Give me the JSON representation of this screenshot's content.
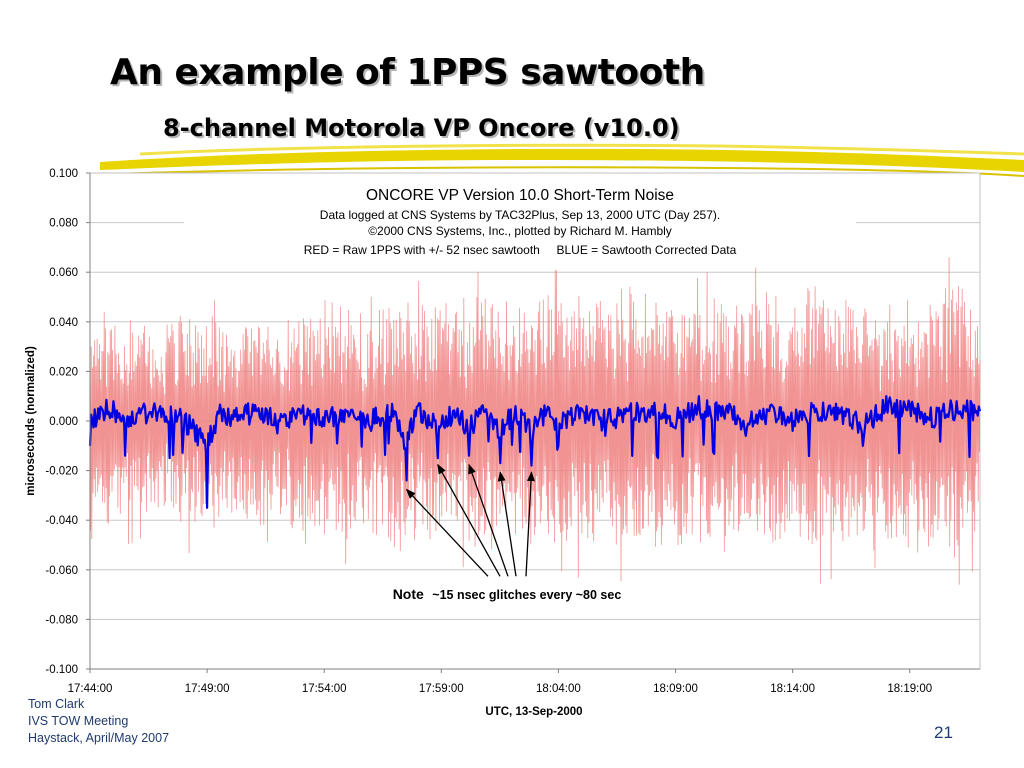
{
  "slide": {
    "title": "An example of 1PPS sawtooth",
    "subtitle": "8-channel Motorola  VP Oncore (v10.0)",
    "footer": [
      "Tom Clark",
      "IVS TOW Meeting",
      "Haystack, April/May 2007"
    ],
    "page_number": "21"
  },
  "colors": {
    "raw_series": "#f08080",
    "corrected_series": "#0000e0",
    "title_shadow": "#b5b5b5",
    "brush": "#e8d400",
    "footer_text": "#1e3a6e"
  },
  "chart_data": {
    "type": "line",
    "title": "ONCORE VP Version 10.0 Short-Term Noise",
    "subtitle_lines": [
      "Data logged at CNS Systems by TAC32Plus, Sep 13, 2000 UTC (Day 257).",
      "©2000 CNS Systems, Inc., plotted by Richard M. Hambly",
      "RED = Raw 1PPS with +/- 52 nsec sawtooth     BLUE = Sawtooth Corrected Data"
    ],
    "xlabel": "UTC, 13-Sep-2000",
    "ylabel": "microseconds (normalized)",
    "xlim": [
      "17:44:00",
      "18:22:00"
    ],
    "ylim": [
      -0.1,
      0.1
    ],
    "x_ticks": [
      "17:44:00",
      "17:49:00",
      "17:54:00",
      "17:59:00",
      "18:04:00",
      "18:09:00",
      "18:14:00",
      "18:19:00"
    ],
    "y_ticks": [
      "0.100",
      "0.080",
      "0.060",
      "0.040",
      "0.020",
      "0.000",
      "-0.020",
      "-0.040",
      "-0.060",
      "-0.080",
      "-0.100"
    ],
    "grid": "horizontal",
    "annotation": {
      "prefix": "Note",
      "text": "~15 nsec glitches every ~80 sec",
      "anchor": [
        -0.061,
        0
      ],
      "targets": [
        {
          "time": "17:57:31",
          "value": -0.026
        },
        {
          "time": "17:58:51",
          "value": -0.016
        },
        {
          "time": "18:00:11",
          "value": -0.016
        },
        {
          "time": "18:01:31",
          "value": -0.019
        },
        {
          "time": "18:02:51",
          "value": -0.019
        }
      ]
    },
    "series": [
      {
        "description": "RED",
        "style": "raw",
        "approx_amplitude": 0.05,
        "points": [
          [
            "17:44:00",
            -0.046
          ],
          [
            "17:45:00",
            0.041
          ],
          [
            "17:46:00",
            -0.039
          ],
          [
            "17:47:00",
            0.032
          ],
          [
            "17:48:00",
            -0.044
          ],
          [
            "17:49:00",
            0.038
          ],
          [
            "17:50:00",
            -0.041
          ],
          [
            "17:51:00",
            0.043
          ],
          [
            "17:52:00",
            -0.036
          ],
          [
            "17:53:00",
            0.048
          ],
          [
            "17:54:00",
            -0.048
          ],
          [
            "17:55:00",
            0.046
          ],
          [
            "17:56:00",
            -0.04
          ],
          [
            "17:57:00",
            0.052
          ],
          [
            "17:58:00",
            -0.045
          ],
          [
            "17:59:00",
            0.05
          ],
          [
            "18:00:00",
            -0.047
          ],
          [
            "18:01:00",
            0.049
          ],
          [
            "18:02:00",
            -0.043
          ],
          [
            "18:03:00",
            0.054
          ],
          [
            "18:04:00",
            -0.048
          ],
          [
            "18:05:00",
            0.051
          ],
          [
            "18:06:00",
            -0.045
          ],
          [
            "18:07:00",
            0.055
          ],
          [
            "18:08:00",
            -0.05
          ],
          [
            "18:09:00",
            0.048
          ],
          [
            "18:10:00",
            -0.046
          ],
          [
            "18:11:00",
            0.052
          ],
          [
            "18:12:00",
            -0.049
          ],
          [
            "18:13:00",
            0.05
          ],
          [
            "18:14:00",
            -0.044
          ],
          [
            "18:15:00",
            0.053
          ],
          [
            "18:16:00",
            -0.05
          ],
          [
            "18:17:00",
            0.049
          ],
          [
            "18:18:00",
            -0.046
          ],
          [
            "18:19:00",
            0.051
          ],
          [
            "18:20:00",
            -0.049
          ],
          [
            "18:21:00",
            0.058
          ],
          [
            "18:22:00",
            -0.044
          ]
        ]
      },
      {
        "description": "BLUE",
        "style": "corrected",
        "approx_range": [
          -0.035,
          0.012
        ],
        "points": [
          [
            "17:44:00",
            -0.01
          ],
          [
            "17:44:30",
            0.005
          ],
          [
            "17:45:00",
            0.008
          ],
          [
            "17:45:30",
            -0.014
          ],
          [
            "17:46:00",
            0.003
          ],
          [
            "17:47:00",
            0.006
          ],
          [
            "17:48:00",
            -0.004
          ],
          [
            "17:49:00",
            -0.035
          ],
          [
            "17:49:30",
            0.003
          ],
          [
            "17:50:00",
            -0.002
          ],
          [
            "17:51:00",
            0.004
          ],
          [
            "17:52:00",
            -0.005
          ],
          [
            "17:53:00",
            0.003
          ],
          [
            "17:54:00",
            -0.002
          ],
          [
            "17:55:00",
            0.004
          ],
          [
            "17:56:00",
            -0.004
          ],
          [
            "17:57:00",
            0.004
          ],
          [
            "17:57:31",
            -0.024
          ],
          [
            "17:58:00",
            0.006
          ],
          [
            "17:58:51",
            -0.015
          ],
          [
            "17:59:30",
            0.004
          ],
          [
            "18:00:11",
            -0.014
          ],
          [
            "18:00:40",
            0.003
          ],
          [
            "18:01:31",
            -0.017
          ],
          [
            "18:02:10",
            0.006
          ],
          [
            "18:02:51",
            -0.018
          ],
          [
            "18:03:30",
            0.004
          ],
          [
            "18:04:00",
            -0.01
          ],
          [
            "18:05:00",
            0.005
          ],
          [
            "18:06:00",
            -0.006
          ],
          [
            "18:07:00",
            0.004
          ],
          [
            "18:08:00",
            0.006
          ],
          [
            "18:09:00",
            -0.003
          ],
          [
            "18:10:00",
            0.01
          ],
          [
            "18:11:00",
            0.006
          ],
          [
            "18:12:00",
            -0.006
          ],
          [
            "18:13:00",
            0.004
          ],
          [
            "18:14:00",
            -0.004
          ],
          [
            "18:15:00",
            0.005
          ],
          [
            "18:16:00",
            0.003
          ],
          [
            "18:17:00",
            -0.01
          ],
          [
            "18:18:00",
            0.01
          ],
          [
            "18:19:00",
            0.007
          ],
          [
            "18:20:00",
            -0.002
          ],
          [
            "18:21:00",
            0.008
          ],
          [
            "18:22:00",
            0.004
          ]
        ]
      }
    ]
  }
}
